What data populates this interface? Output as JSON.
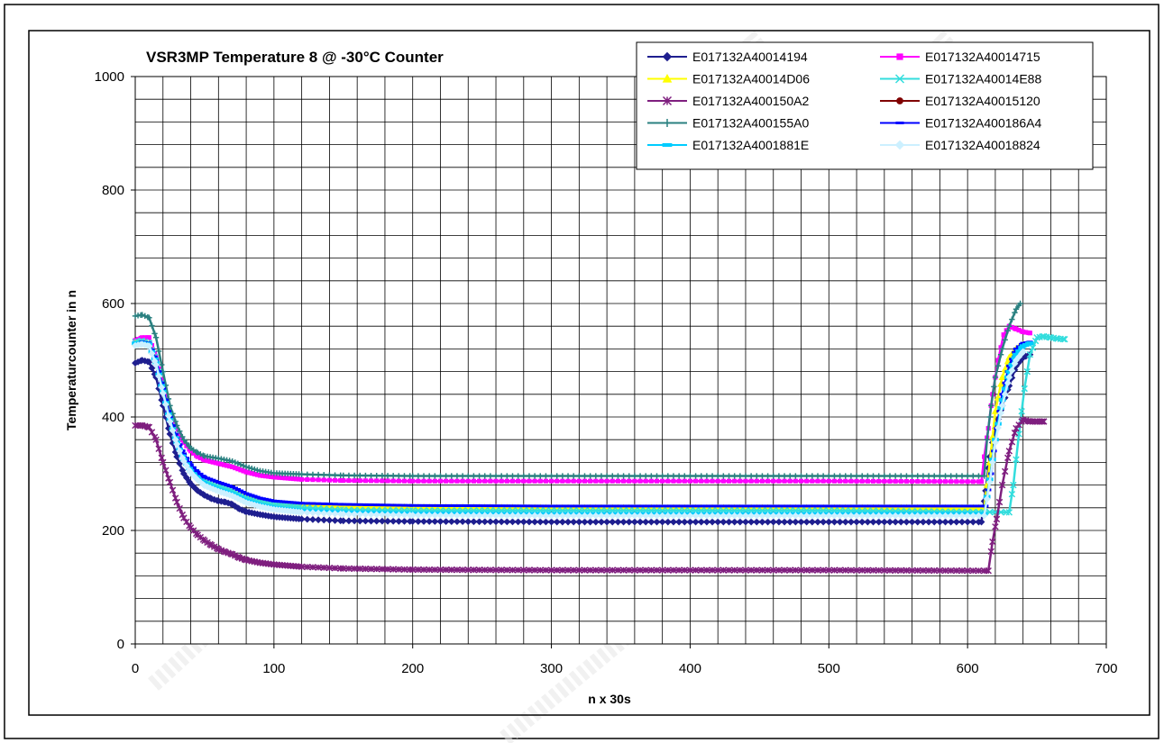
{
  "chart_data": {
    "type": "line",
    "title": "VSR3MP Temperature 8 @ -30°C Counter",
    "xlabel": "n x 30s",
    "ylabel": "Temperaturcounter in n",
    "xlim": [
      0,
      700
    ],
    "ylim": [
      0,
      1000
    ],
    "x_ticks": [
      0,
      100,
      200,
      300,
      400,
      500,
      600,
      700
    ],
    "y_ticks": [
      0,
      200,
      400,
      600,
      800,
      1000
    ],
    "x_minor_step": 20,
    "y_minor_step": 40,
    "grid": true,
    "legend_position": "top-right",
    "series": [
      {
        "name": "E017132A40014194",
        "color": "#1f1f8f",
        "marker": "diamond",
        "points": [
          [
            0,
            495
          ],
          [
            5,
            500
          ],
          [
            10,
            497
          ],
          [
            15,
            470
          ],
          [
            20,
            420
          ],
          [
            25,
            370
          ],
          [
            30,
            330
          ],
          [
            35,
            300
          ],
          [
            40,
            282
          ],
          [
            45,
            270
          ],
          [
            50,
            262
          ],
          [
            55,
            256
          ],
          [
            60,
            252
          ],
          [
            65,
            250
          ],
          [
            70,
            246
          ],
          [
            75,
            238
          ],
          [
            80,
            233
          ],
          [
            90,
            228
          ],
          [
            100,
            224
          ],
          [
            120,
            220
          ],
          [
            150,
            217
          ],
          [
            200,
            216
          ],
          [
            300,
            215
          ],
          [
            400,
            215
          ],
          [
            500,
            215
          ],
          [
            610,
            215
          ],
          [
            613,
            270
          ],
          [
            616,
            330
          ],
          [
            620,
            380
          ],
          [
            625,
            420
          ],
          [
            630,
            455
          ],
          [
            635,
            490
          ],
          [
            640,
            505
          ],
          [
            645,
            510
          ]
        ]
      },
      {
        "name": "E017132A40014715",
        "color": "#ff00ff",
        "marker": "square",
        "points": [
          [
            0,
            535
          ],
          [
            5,
            540
          ],
          [
            10,
            540
          ],
          [
            15,
            505
          ],
          [
            20,
            455
          ],
          [
            25,
            410
          ],
          [
            30,
            378
          ],
          [
            35,
            355
          ],
          [
            40,
            340
          ],
          [
            45,
            330
          ],
          [
            50,
            324
          ],
          [
            60,
            318
          ],
          [
            70,
            312
          ],
          [
            80,
            303
          ],
          [
            90,
            297
          ],
          [
            100,
            294
          ],
          [
            120,
            290
          ],
          [
            150,
            288
          ],
          [
            200,
            287
          ],
          [
            300,
            287
          ],
          [
            400,
            287
          ],
          [
            500,
            287
          ],
          [
            610,
            286
          ],
          [
            612,
            330
          ],
          [
            615,
            380
          ],
          [
            618,
            440
          ],
          [
            622,
            500
          ],
          [
            626,
            545
          ],
          [
            630,
            560
          ],
          [
            635,
            555
          ],
          [
            640,
            550
          ],
          [
            645,
            548
          ]
        ]
      },
      {
        "name": "E017132A40014D06",
        "color": "#ffff00",
        "marker": "triangle",
        "points": [
          [
            0,
            530
          ],
          [
            5,
            532
          ],
          [
            10,
            528
          ],
          [
            15,
            500
          ],
          [
            20,
            450
          ],
          [
            25,
            400
          ],
          [
            30,
            360
          ],
          [
            35,
            330
          ],
          [
            40,
            310
          ],
          [
            45,
            296
          ],
          [
            50,
            286
          ],
          [
            60,
            276
          ],
          [
            70,
            268
          ],
          [
            80,
            258
          ],
          [
            90,
            252
          ],
          [
            100,
            248
          ],
          [
            120,
            244
          ],
          [
            150,
            242
          ],
          [
            200,
            241
          ],
          [
            300,
            240
          ],
          [
            400,
            240
          ],
          [
            500,
            240
          ],
          [
            612,
            240
          ],
          [
            616,
            320
          ],
          [
            620,
            410
          ],
          [
            625,
            470
          ],
          [
            630,
            505
          ],
          [
            635,
            520
          ],
          [
            640,
            528
          ]
        ]
      },
      {
        "name": "E017132A40014E88",
        "color": "#33dddd",
        "marker": "x",
        "points": [
          [
            0,
            532
          ],
          [
            5,
            534
          ],
          [
            10,
            530
          ],
          [
            15,
            500
          ],
          [
            20,
            450
          ],
          [
            25,
            400
          ],
          [
            30,
            360
          ],
          [
            35,
            330
          ],
          [
            40,
            310
          ],
          [
            45,
            297
          ],
          [
            50,
            288
          ],
          [
            60,
            278
          ],
          [
            70,
            270
          ],
          [
            80,
            258
          ],
          [
            90,
            250
          ],
          [
            100,
            245
          ],
          [
            120,
            240
          ],
          [
            150,
            236
          ],
          [
            200,
            235
          ],
          [
            300,
            235
          ],
          [
            400,
            235
          ],
          [
            500,
            235
          ],
          [
            630,
            232
          ],
          [
            633,
            280
          ],
          [
            637,
            370
          ],
          [
            641,
            450
          ],
          [
            645,
            510
          ],
          [
            650,
            540
          ],
          [
            655,
            542
          ],
          [
            660,
            540
          ],
          [
            665,
            538
          ],
          [
            670,
            537
          ]
        ]
      },
      {
        "name": "E017132A400150A2",
        "color": "#7f1f7f",
        "marker": "star",
        "points": [
          [
            0,
            385
          ],
          [
            5,
            385
          ],
          [
            10,
            382
          ],
          [
            15,
            360
          ],
          [
            20,
            320
          ],
          [
            25,
            285
          ],
          [
            30,
            250
          ],
          [
            35,
            222
          ],
          [
            40,
            205
          ],
          [
            45,
            192
          ],
          [
            50,
            182
          ],
          [
            55,
            174
          ],
          [
            60,
            167
          ],
          [
            65,
            162
          ],
          [
            70,
            158
          ],
          [
            75,
            152
          ],
          [
            80,
            148
          ],
          [
            90,
            143
          ],
          [
            100,
            140
          ],
          [
            120,
            136
          ],
          [
            150,
            133
          ],
          [
            200,
            131
          ],
          [
            300,
            130
          ],
          [
            400,
            130
          ],
          [
            500,
            130
          ],
          [
            615,
            129
          ],
          [
            618,
            180
          ],
          [
            621,
            220
          ],
          [
            625,
            280
          ],
          [
            630,
            340
          ],
          [
            635,
            380
          ],
          [
            640,
            395
          ],
          [
            645,
            392
          ],
          [
            650,
            392
          ],
          [
            655,
            392
          ]
        ]
      },
      {
        "name": "E017132A40015120",
        "color": "#800000",
        "marker": "circle",
        "points": []
      },
      {
        "name": "E017132A400155A0",
        "color": "#2a8080",
        "marker": "plus",
        "points": [
          [
            0,
            578
          ],
          [
            5,
            580
          ],
          [
            10,
            575
          ],
          [
            15,
            540
          ],
          [
            20,
            480
          ],
          [
            25,
            420
          ],
          [
            30,
            385
          ],
          [
            35,
            360
          ],
          [
            40,
            345
          ],
          [
            45,
            337
          ],
          [
            50,
            331
          ],
          [
            60,
            327
          ],
          [
            70,
            322
          ],
          [
            80,
            312
          ],
          [
            90,
            305
          ],
          [
            100,
            301
          ],
          [
            120,
            299
          ],
          [
            150,
            297
          ],
          [
            200,
            296
          ],
          [
            300,
            296
          ],
          [
            400,
            296
          ],
          [
            500,
            296
          ],
          [
            612,
            296
          ],
          [
            614,
            360
          ],
          [
            617,
            420
          ],
          [
            620,
            470
          ],
          [
            625,
            520
          ],
          [
            630,
            560
          ],
          [
            635,
            590
          ],
          [
            638,
            600
          ]
        ]
      },
      {
        "name": "E017132A400186A4",
        "color": "#0000ff",
        "marker": "dash",
        "points": [
          [
            0,
            528
          ],
          [
            5,
            532
          ],
          [
            10,
            530
          ],
          [
            15,
            500
          ],
          [
            20,
            450
          ],
          [
            25,
            400
          ],
          [
            30,
            362
          ],
          [
            35,
            335
          ],
          [
            40,
            316
          ],
          [
            45,
            303
          ],
          [
            50,
            294
          ],
          [
            60,
            285
          ],
          [
            70,
            277
          ],
          [
            80,
            265
          ],
          [
            90,
            257
          ],
          [
            100,
            252
          ],
          [
            120,
            248
          ],
          [
            150,
            246
          ],
          [
            200,
            244
          ],
          [
            300,
            243
          ],
          [
            400,
            243
          ],
          [
            500,
            243
          ],
          [
            613,
            243
          ],
          [
            617,
            300
          ],
          [
            621,
            380
          ],
          [
            625,
            440
          ],
          [
            630,
            490
          ],
          [
            635,
            520
          ],
          [
            640,
            530
          ],
          [
            645,
            532
          ]
        ]
      },
      {
        "name": "E017132A4001881E",
        "color": "#00ccff",
        "marker": "bar",
        "points": [
          [
            0,
            530
          ],
          [
            5,
            530
          ],
          [
            10,
            528
          ],
          [
            15,
            495
          ],
          [
            20,
            445
          ],
          [
            25,
            395
          ],
          [
            30,
            355
          ],
          [
            35,
            325
          ],
          [
            40,
            305
          ],
          [
            45,
            292
          ],
          [
            50,
            282
          ],
          [
            60,
            272
          ],
          [
            70,
            264
          ],
          [
            80,
            252
          ],
          [
            90,
            245
          ],
          [
            100,
            240
          ],
          [
            120,
            235
          ],
          [
            150,
            232
          ],
          [
            200,
            230
          ],
          [
            300,
            229
          ],
          [
            400,
            229
          ],
          [
            500,
            229
          ],
          [
            612,
            229
          ],
          [
            616,
            290
          ],
          [
            620,
            360
          ],
          [
            625,
            430
          ],
          [
            630,
            480
          ],
          [
            635,
            510
          ],
          [
            640,
            525
          ],
          [
            645,
            530
          ]
        ]
      },
      {
        "name": "E017132A40018824",
        "color": "#ccf0ff",
        "marker": "diamond",
        "points": [
          [
            0,
            526
          ],
          [
            5,
            528
          ],
          [
            10,
            525
          ],
          [
            15,
            492
          ],
          [
            20,
            442
          ],
          [
            25,
            392
          ],
          [
            30,
            352
          ],
          [
            35,
            322
          ],
          [
            40,
            302
          ],
          [
            45,
            289
          ],
          [
            50,
            279
          ],
          [
            60,
            269
          ],
          [
            70,
            261
          ],
          [
            80,
            249
          ],
          [
            90,
            242
          ],
          [
            100,
            237
          ],
          [
            120,
            232
          ],
          [
            150,
            229
          ],
          [
            200,
            227
          ],
          [
            300,
            226
          ],
          [
            400,
            226
          ],
          [
            500,
            226
          ],
          [
            612,
            226
          ],
          [
            616,
            285
          ],
          [
            620,
            355
          ],
          [
            625,
            420
          ],
          [
            630,
            470
          ],
          [
            635,
            500
          ],
          [
            640,
            515
          ]
        ]
      }
    ]
  }
}
